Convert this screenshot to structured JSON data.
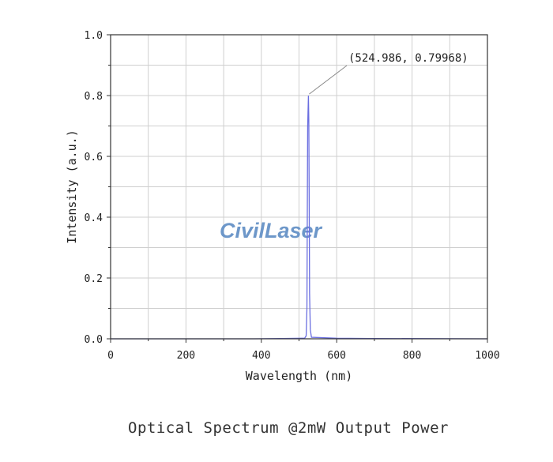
{
  "chart_data": {
    "type": "line",
    "title": "",
    "xlabel": "Wavelength (nm)",
    "ylabel": "Intensity (a.u.)",
    "xlim": [
      0,
      1000
    ],
    "ylim": [
      0,
      1.0
    ],
    "x_ticks": [
      "0",
      "200",
      "400",
      "600",
      "800",
      "1000"
    ],
    "y_ticks": [
      "0.0",
      "0.2",
      "0.4",
      "0.6",
      "0.8",
      "1.0"
    ],
    "grid": true,
    "series": [
      {
        "color": "#6a6ee0",
        "points": [
          [
            0,
            0.0
          ],
          [
            380,
            0.0
          ],
          [
            450,
            0.001
          ],
          [
            515,
            0.002
          ],
          [
            519,
            0.01
          ],
          [
            521,
            0.1
          ],
          [
            522,
            0.4
          ],
          [
            523,
            0.7
          ],
          [
            524.986,
            0.79968
          ],
          [
            526,
            0.72
          ],
          [
            527,
            0.45
          ],
          [
            528,
            0.15
          ],
          [
            530,
            0.03
          ],
          [
            533,
            0.005
          ],
          [
            600,
            0.002
          ],
          [
            700,
            0.001
          ],
          [
            1000,
            0.0
          ]
        ]
      }
    ],
    "annotations": [
      {
        "text": "(524.986, 0.79968)",
        "x": 524.986,
        "y": 0.79968
      }
    ]
  },
  "watermark": {
    "text": "CivilLaser"
  },
  "caption": "Optical Spectrum @2mW Output Power"
}
